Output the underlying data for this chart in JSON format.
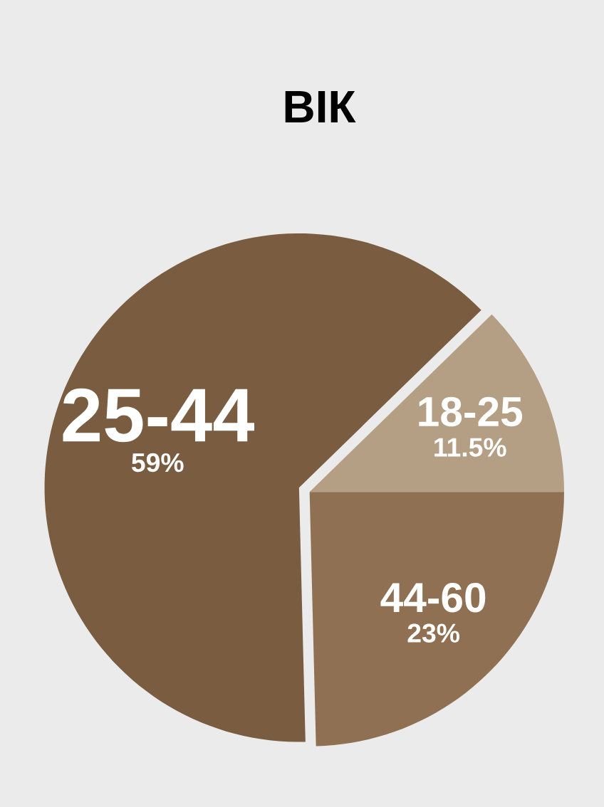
{
  "chart_data": {
    "type": "pie",
    "title": "ВІК",
    "categories": [
      "18-25",
      "25-44",
      "44-60"
    ],
    "values": [
      11.5,
      59,
      23
    ],
    "value_labels": [
      "11.5%",
      "59%",
      "23%"
    ],
    "colors": [
      "#b49e84",
      "#7a5c40",
      "#8f7052"
    ]
  }
}
